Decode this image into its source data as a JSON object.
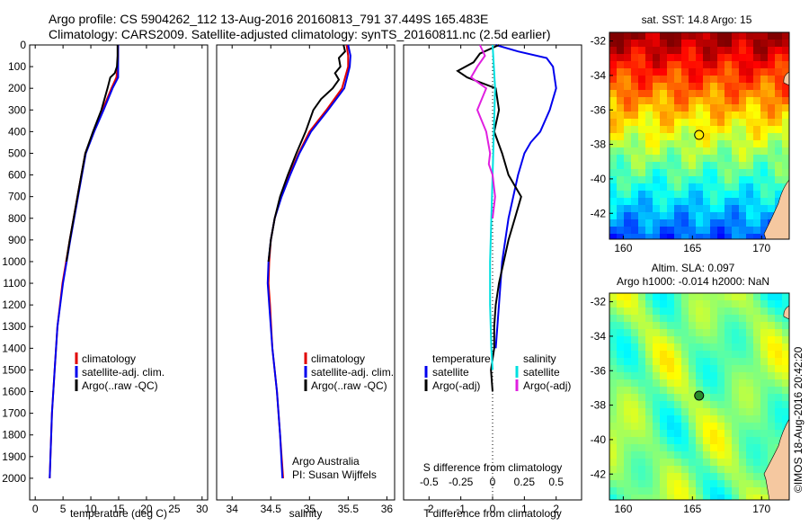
{
  "header": {
    "line1": "Argo profile: CS 5904262_112 13-Aug-2016 20160813_791 37.449S 165.483E",
    "line2": "Climatology: CARS2009. Satellite-adjusted climatology: synTS_20160811.nc (2.5d earlier)"
  },
  "colors": {
    "climatology": "#e00000",
    "satellite": "#0000ee",
    "argo": "#000000",
    "sal_satellite": "#00e0e0",
    "sal_argo": "#e020e0"
  },
  "chart_data": [
    {
      "type": "line",
      "xlabel": "temperature (deg C)",
      "ylabel": "",
      "xlim": [
        -1,
        31
      ],
      "ylim": [
        2100,
        0
      ],
      "x_ticks": [
        0,
        5,
        10,
        15,
        20,
        25,
        30
      ],
      "y_ticks": [
        0,
        100,
        200,
        300,
        400,
        500,
        600,
        700,
        800,
        900,
        1000,
        1100,
        1200,
        1300,
        1400,
        1500,
        1600,
        1700,
        1800,
        1900,
        2000
      ],
      "legend": [
        "climatology",
        "satellite-adj. clim.",
        "Argo(..raw -QC)"
      ],
      "series": [
        {
          "name": "climatology",
          "color_key": "climatology",
          "depth": [
            0,
            50,
            100,
            150,
            200,
            300,
            400,
            500,
            700,
            900,
            1100,
            1300,
            1500,
            1700,
            2000
          ],
          "values": [
            14.9,
            14.9,
            14.8,
            14.6,
            13.7,
            12.1,
            10.5,
            9.0,
            7.6,
            6.2,
            4.9,
            4.0,
            3.5,
            3.0,
            2.6
          ]
        },
        {
          "name": "satellite-adj. clim.",
          "color_key": "satellite",
          "depth": [
            0,
            50,
            100,
            150,
            200,
            300,
            400,
            500,
            700,
            900,
            1100,
            1300,
            1500,
            1700,
            2000
          ],
          "values": [
            14.9,
            14.9,
            14.9,
            14.9,
            13.9,
            12.3,
            10.6,
            9.1,
            7.7,
            6.3,
            5.0,
            4.0,
            3.5,
            3.0,
            2.6
          ]
        },
        {
          "name": "Argo(..raw -QC)",
          "color_key": "argo",
          "depth": [
            0,
            50,
            100,
            130,
            150,
            200,
            300,
            400,
            500,
            600,
            700,
            800,
            900,
            1000
          ],
          "values": [
            14.8,
            14.8,
            14.7,
            14.3,
            13.5,
            13.0,
            11.9,
            10.4,
            9.0,
            8.3,
            7.6,
            6.9,
            6.2,
            5.6
          ]
        }
      ]
    },
    {
      "type": "line",
      "xlabel": "salinity",
      "ylabel": "",
      "xlim": [
        33.8,
        36.1
      ],
      "ylim": [
        2100,
        0
      ],
      "x_ticks": [
        34,
        34.5,
        35,
        35.5,
        36
      ],
      "legend": [
        "climatology",
        "satellite-adj. clim.",
        "Argo(..raw -QC)"
      ],
      "annotations": [
        "Argo Australia",
        "PI: Susan Wijffels"
      ],
      "series": [
        {
          "name": "climatology",
          "color_key": "climatology",
          "depth": [
            0,
            50,
            100,
            200,
            300,
            400,
            500,
            600,
            700,
            800,
            900,
            1000,
            1100,
            1200,
            1400,
            1600,
            1800,
            2000
          ],
          "values": [
            35.48,
            35.5,
            35.5,
            35.42,
            35.22,
            35.0,
            34.86,
            34.74,
            34.63,
            34.55,
            34.5,
            34.48,
            34.47,
            34.49,
            34.52,
            34.58,
            34.62,
            34.66
          ]
        },
        {
          "name": "satellite-adj. clim.",
          "color_key": "satellite",
          "depth": [
            0,
            50,
            100,
            200,
            300,
            400,
            500,
            600,
            700,
            800,
            900,
            1000,
            1100,
            1200,
            1400,
            1600,
            1800,
            2000
          ],
          "values": [
            35.5,
            35.53,
            35.52,
            35.45,
            35.24,
            35.02,
            34.87,
            34.75,
            34.64,
            34.55,
            34.5,
            34.47,
            34.46,
            34.48,
            34.52,
            34.58,
            34.62,
            34.65
          ]
        },
        {
          "name": "Argo(..raw -QC)",
          "color_key": "argo",
          "depth": [
            0,
            30,
            60,
            100,
            130,
            160,
            200,
            250,
            300,
            400,
            500,
            600,
            700,
            800,
            900,
            1000
          ],
          "values": [
            35.44,
            35.46,
            35.38,
            35.4,
            35.33,
            35.38,
            35.3,
            35.15,
            35.05,
            34.95,
            34.83,
            34.72,
            34.62,
            34.55,
            34.5,
            34.47
          ]
        }
      ]
    },
    {
      "type": "line",
      "xlabel": "T difference from climatology",
      "ylabel": "",
      "xlim": [
        -2.8,
        2.8
      ],
      "ylim": [
        2100,
        0
      ],
      "x_ticks": [
        -2,
        -1,
        0,
        1,
        2
      ],
      "secondary_x_label": "S difference from climatology",
      "secondary_x_ticks": [
        "-0.5",
        "-0.25",
        "0",
        "0.25",
        "0.5"
      ],
      "legend_titles": [
        "temperature",
        "salinity"
      ],
      "legend": [
        "satellite",
        "Argo(-adj)",
        "satellite",
        "Argo(-adj)"
      ],
      "series": [
        {
          "name": "satellite",
          "group": "temperature",
          "color_key": "satellite",
          "depth": [
            0,
            30,
            60,
            100,
            200,
            300,
            400,
            450,
            500,
            600,
            800,
            1000,
            1200,
            1300,
            1400
          ],
          "values": [
            0.1,
            0.8,
            1.7,
            1.9,
            2.0,
            1.8,
            1.5,
            1.2,
            1.0,
            0.8,
            0.5,
            0.3,
            0.2,
            0.15,
            0.1
          ]
        },
        {
          "name": "Argo(-adj)",
          "group": "temperature",
          "color_key": "argo",
          "depth": [
            0,
            40,
            80,
            120,
            150,
            200,
            300,
            400,
            500,
            600,
            700,
            800,
            900,
            1000,
            1100,
            1200,
            1300,
            1400,
            1500,
            1600
          ],
          "values": [
            0.2,
            -0.4,
            -0.6,
            -1.1,
            -0.8,
            0.1,
            0.2,
            0.05,
            0.3,
            0.5,
            0.9,
            0.7,
            0.5,
            0.35,
            0.2,
            0.1,
            0.05,
            0.05,
            -0.05,
            0.0
          ]
        },
        {
          "name": "satellite",
          "group": "salinity",
          "color_key": "sal_satellite",
          "depth": [
            0,
            100,
            200,
            400,
            600,
            800,
            1000,
            1200,
            1400,
            1500
          ],
          "values": [
            0.0,
            0.01,
            0.02,
            0.01,
            0.0,
            -0.01,
            -0.02,
            -0.02,
            -0.01,
            0.0
          ]
        },
        {
          "name": "Argo(-adj)",
          "group": "salinity",
          "color_key": "sal_argo",
          "depth": [
            0,
            50,
            100,
            150,
            200,
            300,
            400,
            500,
            550,
            600,
            700,
            800
          ],
          "values": [
            -0.1,
            -0.06,
            -0.12,
            -0.17,
            -0.05,
            -0.12,
            -0.05,
            -0.02,
            -0.03,
            0.0,
            0.02,
            0.0
          ]
        }
      ]
    },
    {
      "type": "heatmap",
      "title": "sat. SST: 14.8  Argo: 15",
      "xlim": [
        159,
        172
      ],
      "ylim": [
        -43.5,
        -31.5
      ],
      "x_ticks": [
        160,
        165,
        170
      ],
      "y_ticks": [
        -32,
        -34,
        -36,
        -38,
        -40,
        -42
      ],
      "marker": {
        "lon": 165.483,
        "lat": -37.449
      }
    },
    {
      "type": "heatmap",
      "title": "Altim. SLA: 0.097",
      "subtitle": "Argo h1000: -0.014 h2000: NaN",
      "xlim": [
        159,
        172
      ],
      "ylim": [
        -43.5,
        -31.5
      ],
      "x_ticks": [
        160,
        165,
        170
      ],
      "y_ticks": [
        -32,
        -34,
        -36,
        -38,
        -40,
        -42
      ],
      "marker": {
        "lon": 165.483,
        "lat": -37.449
      }
    }
  ],
  "credit": "©IMOS 18-Aug-2016 20:42:20"
}
